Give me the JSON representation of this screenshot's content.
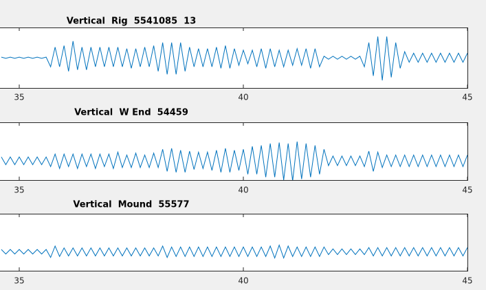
{
  "chart_data": [
    {
      "type": "line",
      "title": "Vertical  Rig  5541085  13",
      "xlim": [
        30,
        45
      ],
      "xticks": [
        35,
        40,
        45
      ],
      "ylim": [
        -1,
        1
      ],
      "series": [
        {
          "name": "Rig",
          "color": "#0072bd",
          "x": [
            34.6,
            34.7,
            34.8,
            34.9,
            35.0,
            35.1,
            35.2,
            35.3,
            35.4,
            35.5,
            35.6,
            35.7,
            35.8,
            35.9,
            36.0,
            36.1,
            36.2,
            36.3,
            36.4,
            36.5,
            36.6,
            36.7,
            36.8,
            36.9,
            37.0,
            37.1,
            37.2,
            37.3,
            37.4,
            37.5,
            37.6,
            37.7,
            37.8,
            37.9,
            38.0,
            38.1,
            38.2,
            38.3,
            38.4,
            38.5,
            38.6,
            38.7,
            38.8,
            38.9,
            39.0,
            39.1,
            39.2,
            39.3,
            39.4,
            39.5,
            39.6,
            39.7,
            39.8,
            39.9,
            40.0,
            40.1,
            40.2,
            40.3,
            40.4,
            40.5,
            40.6,
            40.7,
            40.8,
            40.9,
            41.0,
            41.1,
            41.2,
            41.3,
            41.4,
            41.5,
            41.6,
            41.7,
            41.8,
            41.9,
            42.0,
            42.1,
            42.2,
            42.3,
            42.4,
            42.5,
            42.6,
            42.7,
            42.8,
            42.9,
            43.0,
            43.1,
            43.2,
            43.3,
            43.4,
            43.5,
            43.6,
            43.7,
            43.8,
            43.9,
            44.0,
            44.1,
            44.2,
            44.3,
            44.4,
            44.5,
            44.6,
            44.7,
            44.8,
            44.9,
            45.0
          ],
          "values": [
            0.02,
            -0.02,
            0.02,
            -0.02,
            0.02,
            -0.02,
            0.02,
            -0.02,
            0.02,
            -0.02,
            0.02,
            -0.3,
            0.35,
            -0.3,
            0.4,
            -0.45,
            0.55,
            -0.4,
            0.35,
            -0.4,
            0.35,
            -0.3,
            0.35,
            -0.3,
            0.35,
            -0.3,
            0.35,
            -0.3,
            0.3,
            -0.35,
            0.3,
            -0.3,
            0.35,
            -0.3,
            0.4,
            -0.45,
            0.5,
            -0.55,
            0.5,
            -0.55,
            0.5,
            -0.45,
            0.35,
            -0.3,
            0.3,
            -0.3,
            0.3,
            -0.3,
            0.35,
            -0.35,
            0.4,
            -0.35,
            0.3,
            -0.25,
            0.25,
            -0.2,
            0.25,
            -0.3,
            0.3,
            -0.35,
            0.3,
            -0.3,
            0.25,
            -0.3,
            0.25,
            -0.25,
            0.3,
            -0.25,
            0.3,
            -0.35,
            0.3,
            -0.3,
            0.05,
            -0.05,
            0.05,
            -0.05,
            0.05,
            -0.05,
            0.05,
            -0.05,
            0.05,
            -0.3,
            0.5,
            -0.6,
            0.7,
            -0.75,
            0.7,
            -0.65,
            0.5,
            -0.35,
            0.2,
            -0.15,
            0.15,
            -0.15,
            0.15,
            -0.15,
            0.15,
            -0.15,
            0.15,
            -0.15,
            0.15,
            -0.15,
            0.15,
            -0.15,
            0.15
          ]
        }
      ]
    },
    {
      "type": "line",
      "title": "Vertical  W End  54459",
      "xlim": [
        30,
        45
      ],
      "xticks": [
        35,
        40,
        45
      ],
      "ylim": [
        -1,
        2
      ],
      "series": [
        {
          "name": "W End",
          "color": "#0072bd",
          "x": [
            34.6,
            34.7,
            34.8,
            34.9,
            35.0,
            35.1,
            35.2,
            35.3,
            35.4,
            35.5,
            35.6,
            35.7,
            35.8,
            35.9,
            36.0,
            36.1,
            36.2,
            36.3,
            36.4,
            36.5,
            36.6,
            36.7,
            36.8,
            36.9,
            37.0,
            37.1,
            37.2,
            37.3,
            37.4,
            37.5,
            37.6,
            37.7,
            37.8,
            37.9,
            38.0,
            38.1,
            38.2,
            38.3,
            38.4,
            38.5,
            38.6,
            38.7,
            38.8,
            38.9,
            39.0,
            39.1,
            39.2,
            39.3,
            39.4,
            39.5,
            39.6,
            39.7,
            39.8,
            39.9,
            40.0,
            40.1,
            40.2,
            40.3,
            40.4,
            40.5,
            40.6,
            40.7,
            40.8,
            40.9,
            41.0,
            41.1,
            41.2,
            41.3,
            41.4,
            41.5,
            41.6,
            41.7,
            41.8,
            41.9,
            42.0,
            42.1,
            42.2,
            42.3,
            42.4,
            42.5,
            42.6,
            42.7,
            42.8,
            42.9,
            43.0,
            43.1,
            43.2,
            43.3,
            43.4,
            43.5,
            43.6,
            43.7,
            43.8,
            43.9,
            44.0,
            44.1,
            44.2,
            44.3,
            44.4,
            44.5,
            44.6,
            44.7,
            44.8,
            44.9,
            45.0
          ],
          "values": [
            0.2,
            -0.2,
            0.2,
            -0.2,
            0.2,
            -0.2,
            0.2,
            -0.2,
            0.2,
            -0.2,
            0.2,
            -0.3,
            0.35,
            -0.4,
            0.35,
            -0.3,
            0.35,
            -0.4,
            0.35,
            -0.3,
            0.35,
            -0.4,
            0.35,
            -0.3,
            0.35,
            -0.4,
            0.45,
            -0.35,
            0.3,
            -0.35,
            0.4,
            -0.35,
            0.3,
            -0.35,
            0.4,
            -0.35,
            0.6,
            -0.55,
            0.65,
            -0.6,
            0.55,
            -0.6,
            0.5,
            -0.45,
            0.45,
            -0.4,
            0.45,
            -0.5,
            0.55,
            -0.6,
            0.65,
            -0.6,
            0.55,
            -0.5,
            0.6,
            -0.7,
            0.75,
            -0.7,
            0.8,
            -0.85,
            0.9,
            -0.85,
            0.95,
            -1.0,
            0.9,
            -1.05,
            1.0,
            -0.95,
            0.9,
            -0.85,
            0.8,
            -0.7,
            0.6,
            -0.25,
            0.25,
            -0.25,
            0.25,
            -0.25,
            0.25,
            -0.25,
            0.25,
            -0.3,
            0.5,
            -0.55,
            0.45,
            -0.35,
            0.3,
            -0.3,
            0.3,
            -0.3,
            0.3,
            -0.3,
            0.3,
            -0.3,
            0.3,
            -0.3,
            0.3,
            -0.3,
            0.3,
            -0.3,
            0.3,
            -0.3,
            0.3,
            -0.3,
            0.3
          ]
        }
      ]
    },
    {
      "type": "line",
      "title": "Vertical  Mound  55577",
      "xlim": [
        30,
        45
      ],
      "xticks": [
        35,
        40,
        45
      ],
      "ylim": [
        -1,
        2
      ],
      "series": [
        {
          "name": "Mound",
          "color": "#0072bd",
          "x": [
            34.6,
            34.7,
            34.8,
            34.9,
            35.0,
            35.1,
            35.2,
            35.3,
            35.4,
            35.5,
            35.6,
            35.7,
            35.8,
            35.9,
            36.0,
            36.1,
            36.2,
            36.3,
            36.4,
            36.5,
            36.6,
            36.7,
            36.8,
            36.9,
            37.0,
            37.1,
            37.2,
            37.3,
            37.4,
            37.5,
            37.6,
            37.7,
            37.8,
            37.9,
            38.0,
            38.1,
            38.2,
            38.3,
            38.4,
            38.5,
            38.6,
            38.7,
            38.8,
            38.9,
            39.0,
            39.1,
            39.2,
            39.3,
            39.4,
            39.5,
            39.6,
            39.7,
            39.8,
            39.9,
            40.0,
            40.1,
            40.2,
            40.3,
            40.4,
            40.5,
            40.6,
            40.7,
            40.8,
            40.9,
            41.0,
            41.1,
            41.2,
            41.3,
            41.4,
            41.5,
            41.6,
            41.7,
            41.8,
            41.9,
            42.0,
            42.1,
            42.2,
            42.3,
            42.4,
            42.5,
            42.6,
            42.7,
            42.8,
            42.9,
            43.0,
            43.1,
            43.2,
            43.3,
            43.4,
            43.5,
            43.6,
            43.7,
            43.8,
            43.9,
            44.0,
            44.1,
            44.2,
            44.3,
            44.4,
            44.5,
            44.6,
            44.7,
            44.8,
            44.9,
            45.0
          ],
          "values": [
            0.12,
            -0.12,
            0.12,
            -0.12,
            0.12,
            -0.12,
            0.12,
            -0.12,
            0.12,
            -0.12,
            0.12,
            -0.3,
            0.3,
            -0.25,
            0.2,
            -0.22,
            0.2,
            -0.22,
            0.2,
            -0.22,
            0.2,
            -0.22,
            0.2,
            -0.22,
            0.2,
            -0.22,
            0.2,
            -0.22,
            0.2,
            -0.22,
            0.2,
            -0.22,
            0.2,
            -0.22,
            0.2,
            -0.22,
            0.3,
            -0.3,
            0.25,
            -0.25,
            0.25,
            -0.25,
            0.25,
            -0.25,
            0.25,
            -0.25,
            0.25,
            -0.25,
            0.25,
            -0.25,
            0.25,
            -0.25,
            0.25,
            -0.25,
            0.25,
            -0.25,
            0.25,
            -0.25,
            0.25,
            -0.25,
            0.3,
            -0.33,
            0.35,
            -0.33,
            0.3,
            -0.25,
            0.25,
            -0.25,
            0.25,
            -0.25,
            0.25,
            -0.25,
            0.25,
            -0.15,
            0.15,
            -0.15,
            0.15,
            -0.15,
            0.15,
            -0.15,
            0.15,
            -0.15,
            0.22,
            -0.22,
            0.22,
            -0.22,
            0.22,
            -0.22,
            0.22,
            -0.22,
            0.22,
            -0.22,
            0.22,
            -0.22,
            0.22,
            -0.22,
            0.22,
            -0.22,
            0.22,
            -0.22,
            0.22,
            -0.22,
            0.22,
            -0.22,
            0.22
          ]
        }
      ]
    }
  ]
}
